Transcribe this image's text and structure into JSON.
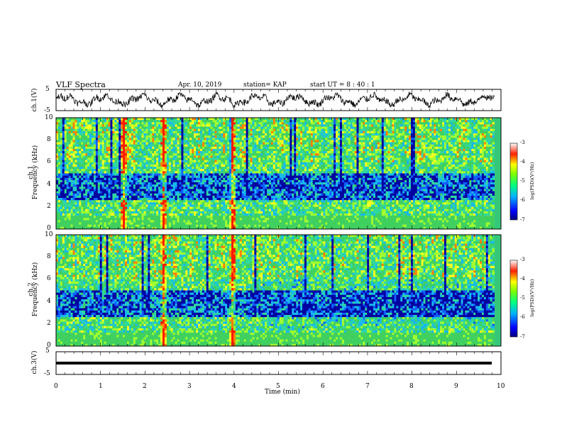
{
  "header": {
    "title": "VLF Spectra",
    "date": "Apr. 10, 2019",
    "station": "station= KAP",
    "start": "start  UT  =   8  : 40 : 1"
  },
  "chart_data": [
    {
      "type": "line",
      "panel": "ch1_waveform",
      "ylabel": "ch.1(V)",
      "ylim": [
        -5,
        5
      ],
      "ytick_labels": [
        "5",
        "-5"
      ],
      "xlim": [
        0,
        10
      ],
      "x_extent_min": [
        0,
        9.85
      ],
      "series": [
        {
          "values_note": "noisy waveform oscillating approximately between -2 and +2 V"
        }
      ]
    },
    {
      "type": "heatmap",
      "panel": "ch1_spectrogram",
      "ylabel": "ch.1\nFrequency  (kHz)",
      "ylabel_line1": "ch.1",
      "ylabel_line2": "Frequency  (kHz)",
      "ylim": [
        0,
        10
      ],
      "ytick_labels": [
        "0",
        "2",
        "4",
        "6",
        "8",
        "10"
      ],
      "xlim": [
        0,
        10
      ],
      "x_extent_min": [
        0,
        9.85
      ],
      "colorbar": {
        "label": "log(PSD)(V²/Hz)",
        "range": [
          -7,
          -3
        ],
        "tick_labels": [
          "-3",
          "-4",
          "-5",
          "-6",
          "-7"
        ]
      },
      "strong_events_min": [
        1.5,
        2.4,
        3.95
      ],
      "high_freq_band_khz": [
        6,
        10
      ],
      "low_freq_band_khz": [
        2.5,
        5
      ]
    },
    {
      "type": "heatmap",
      "panel": "ch2_spectrogram",
      "ylabel_line1": "ch.2",
      "ylabel_line2": "Frequency  (kHz)",
      "ylim": [
        0,
        10
      ],
      "ytick_labels": [
        "0",
        "2",
        "4",
        "6",
        "8",
        "10"
      ],
      "xlim": [
        0,
        10
      ],
      "x_extent_min": [
        0,
        9.85
      ],
      "colorbar": {
        "label": "log(PSD)(V²/Hz)",
        "range": [
          -7,
          -3
        ],
        "tick_labels": [
          "-3",
          "-4",
          "-5",
          "-6",
          "-7"
        ]
      },
      "strong_events_min": [
        2.4,
        3.95
      ]
    },
    {
      "type": "line",
      "panel": "ch3_waveform",
      "ylabel": "ch.3(V)",
      "ylim": [
        -5,
        5
      ],
      "ytick_labels": [
        "5",
        "-5"
      ],
      "xlim": [
        0,
        10
      ],
      "xlabel": "Time  (min)",
      "xtick_labels": [
        "0",
        "1",
        "2",
        "3",
        "4",
        "5",
        "6",
        "7",
        "8",
        "9",
        "10"
      ],
      "series": [
        {
          "values_note": "flat line near 0 V (saturated, thick)",
          "level": 0
        }
      ]
    }
  ],
  "colors": {
    "bg_base": "#35c87a",
    "bg_low": "#22aee0",
    "deep": "#0000b0",
    "warm": "#ff2400",
    "yellow": "#e8ff30"
  }
}
